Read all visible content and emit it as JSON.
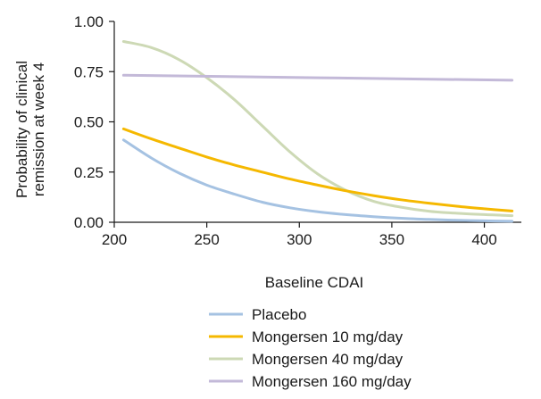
{
  "chart_data": {
    "type": "line",
    "title": "",
    "xlabel": "Baseline CDAI",
    "ylabel_lines": [
      "Probability of clinical",
      "remission at week 4"
    ],
    "xlim": [
      200,
      420
    ],
    "ylim": [
      0,
      1
    ],
    "x_ticks": [
      200,
      250,
      300,
      350,
      400
    ],
    "x_tick_labels": [
      "200",
      "250",
      "300",
      "350",
      "400"
    ],
    "y_ticks": [
      0,
      0.25,
      0.5,
      0.75,
      1
    ],
    "y_tick_labels": [
      "0.00",
      "0.25",
      "0.50",
      "0.75",
      "1.00"
    ],
    "grid": false,
    "legend_position": "bottom",
    "series": [
      {
        "name": "Placebo",
        "color": "#a5c2e2",
        "x": [
          205,
          220,
          235,
          250,
          265,
          280,
          295,
          310,
          325,
          340,
          355,
          370,
          385,
          400,
          415
        ],
        "y": [
          0.41,
          0.32,
          0.245,
          0.185,
          0.14,
          0.1,
          0.072,
          0.052,
          0.038,
          0.028,
          0.02,
          0.014,
          0.01,
          0.007,
          0.005
        ]
      },
      {
        "name": "Mongersen 10 mg/day",
        "color": "#f5b800",
        "x": [
          205,
          220,
          235,
          250,
          265,
          280,
          295,
          310,
          325,
          340,
          355,
          370,
          385,
          400,
          415
        ],
        "y": [
          0.465,
          0.415,
          0.37,
          0.325,
          0.285,
          0.25,
          0.215,
          0.185,
          0.157,
          0.133,
          0.112,
          0.095,
          0.08,
          0.067,
          0.056
        ]
      },
      {
        "name": "Mongersen 40 mg/day",
        "color": "#cdd9b5",
        "x": [
          205,
          220,
          235,
          250,
          265,
          280,
          295,
          310,
          325,
          340,
          355,
          370,
          385,
          400,
          415
        ],
        "y": [
          0.9,
          0.87,
          0.81,
          0.72,
          0.61,
          0.48,
          0.35,
          0.24,
          0.16,
          0.105,
          0.075,
          0.055,
          0.045,
          0.038,
          0.033
        ]
      },
      {
        "name": "Mongersen 160 mg/day",
        "color": "#c3b9d8",
        "x": [
          205,
          415
        ],
        "y": [
          0.732,
          0.707
        ]
      }
    ]
  }
}
